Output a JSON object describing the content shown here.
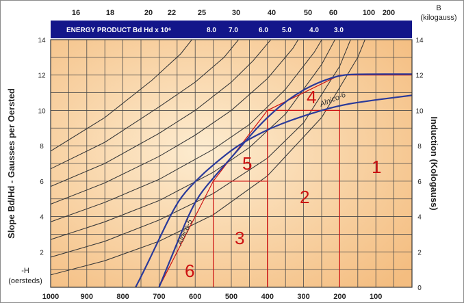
{
  "chart_data": {
    "type": "line",
    "title": "ENERGY PRODUCT Bd Hd x 10⁶",
    "xlabel": "-H",
    "xunit": "(oersteds)",
    "ylabel_left": "Slope Bd/Hd - Gausses per Oersted",
    "ylabel_right": "Induction (Kologauss)",
    "ylabel_right_top": "B",
    "ylabel_right_unit": "(kilogauss)",
    "xlim": [
      1000,
      0
    ],
    "ylim": [
      0,
      14
    ],
    "x_ticks": [
      "1000",
      "900",
      "800",
      "700",
      "600",
      "500",
      "400",
      "300",
      "200",
      "100"
    ],
    "y_ticks": [
      "14",
      "12",
      "10",
      "8",
      "6",
      "4",
      "2"
    ],
    "y_right_ticks": [
      "14",
      "12",
      "10",
      "8",
      "6",
      "4",
      "2",
      "0"
    ],
    "top_ticks": [
      "16",
      "18",
      "20",
      "22",
      "25",
      "30",
      "40",
      "50",
      "60",
      "100",
      "200"
    ],
    "energy_labels": [
      "8.0",
      "7.0",
      "6.0",
      "5.0",
      "4.0",
      "3.0"
    ],
    "grid": true,
    "series": [
      {
        "name": "Alnico-5",
        "color": "#2a3a9a",
        "points": [
          [
            765,
            0
          ],
          [
            740,
            1
          ],
          [
            705,
            2.5
          ],
          [
            670,
            4
          ],
          [
            640,
            5.1
          ],
          [
            590,
            6.2
          ],
          [
            540,
            7.1
          ],
          [
            490,
            7.9
          ],
          [
            440,
            8.5
          ],
          [
            380,
            9.1
          ],
          [
            300,
            9.7
          ],
          [
            200,
            10.3
          ],
          [
            100,
            10.6
          ],
          [
            0,
            10.85
          ]
        ]
      },
      {
        "name": "Alnico-6",
        "color": "#2a3a9a",
        "points": [
          [
            700,
            0
          ],
          [
            680,
            1
          ],
          [
            650,
            2.5
          ],
          [
            620,
            4
          ],
          [
            590,
            5.2
          ],
          [
            545,
            6.3
          ],
          [
            480,
            7.8
          ],
          [
            430,
            9
          ],
          [
            380,
            10
          ],
          [
            330,
            10.8
          ],
          [
            270,
            11.5
          ],
          [
            200,
            12
          ],
          [
            150,
            12.05
          ],
          [
            0,
            12.05
          ]
        ]
      }
    ],
    "guides_color": "#cc1111",
    "guides": [
      {
        "points": [
          [
            700,
            0
          ],
          [
            550,
            6
          ],
          [
            400,
            10
          ],
          [
            200,
            12
          ],
          [
            0,
            12
          ]
        ]
      },
      {
        "points": [
          [
            550,
            0
          ],
          [
            550,
            6
          ],
          [
            400,
            6
          ],
          [
            400,
            0
          ]
        ]
      },
      {
        "points": [
          [
            400,
            0
          ],
          [
            400,
            10
          ],
          [
            200,
            10
          ],
          [
            200,
            0
          ]
        ]
      }
    ],
    "region_labels": [
      "1",
      "2",
      "3",
      "4",
      "5",
      "6"
    ],
    "colors": {
      "band": "#13168a",
      "paper_light": "#fde9c8",
      "paper_dark": "#f6c287",
      "grid": "#4a4a4a",
      "curve": "#2a3a9a",
      "guide": "#cc1111"
    }
  }
}
